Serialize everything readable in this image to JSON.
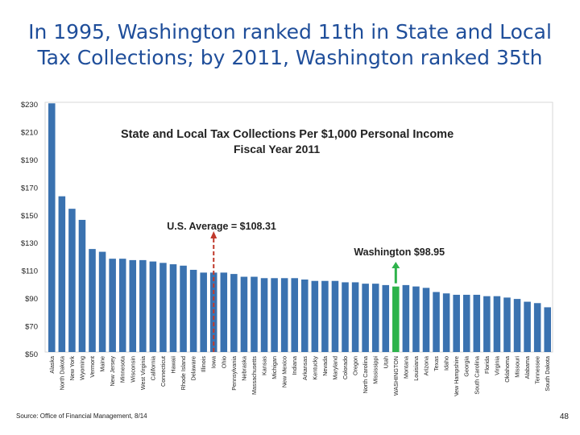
{
  "slide": {
    "title_line1": "In 1995, Washington ranked 11th in State and Local",
    "title_line2": "Tax Collections; by 2011, Washington ranked 35th",
    "source": "Source: Office of Financial Management, 8/14",
    "page_number": "48"
  },
  "chart_data": {
    "type": "bar",
    "title": "State and Local Tax Collections Per $1,000 Personal Income",
    "subtitle": "Fiscal Year 2011",
    "xlabel": "",
    "ylabel": "",
    "ylim": [
      50,
      230
    ],
    "yticks": [
      "$50",
      "$70",
      "$90",
      "$110",
      "$130",
      "$150",
      "$170",
      "$190",
      "$210",
      "$230"
    ],
    "ytick_values": [
      50,
      70,
      90,
      110,
      130,
      150,
      170,
      190,
      210,
      230
    ],
    "grid": false,
    "bar_color": "#3a72b0",
    "highlight_color": "#2eb34b",
    "highlight_category": "WASHINGTON",
    "categories": [
      "Alaska",
      "North Dakota",
      "New York",
      "Wyoming",
      "Vermont",
      "Maine",
      "New Jersey",
      "Minnesota",
      "Wisconsin",
      "West Virginia",
      "California",
      "Connecticut",
      "Hawaii",
      "Rhode Island",
      "Delaware",
      "Illinois",
      "Iowa",
      "Ohio",
      "Pennsylvania",
      "Nebraska",
      "Massachusetts",
      "Kansas",
      "Michigan",
      "New Mexico",
      "Indiana",
      "Arkansas",
      "Kentucky",
      "Nevada",
      "Maryland",
      "Colorado",
      "Oregon",
      "North Carolina",
      "Mississippi",
      "Utah",
      "WASHINGTON",
      "Montana",
      "Louisiana",
      "Arizona",
      "Texas",
      "Idaho",
      "New Hampshire",
      "Georgia",
      "South Carolina",
      "Florida",
      "Virginia",
      "Oklahoma",
      "Missouri",
      "Alabama",
      "Tennessee",
      "South Dakota"
    ],
    "values": [
      231,
      164,
      155,
      147,
      126,
      124,
      119,
      119,
      118,
      118,
      117,
      116,
      115,
      114,
      111,
      109,
      109,
      109,
      108,
      106,
      106,
      105,
      105,
      105,
      105,
      104,
      103,
      103,
      103,
      102,
      102,
      101,
      101,
      100,
      98.95,
      100,
      99,
      98,
      95,
      94,
      93,
      93,
      93,
      92,
      92,
      91,
      90,
      88,
      87,
      84
    ],
    "annotations": [
      {
        "id": "us-average",
        "text": "U.S. Average = $108.31",
        "value": 108.31,
        "category": "Iowa",
        "color": "#c0392b",
        "style": "dashed-arrow"
      },
      {
        "id": "washington",
        "text": "Washington $98.95",
        "value": 98.95,
        "category": "WASHINGTON",
        "color": "#2eb34b",
        "style": "solid-arrow"
      }
    ]
  }
}
